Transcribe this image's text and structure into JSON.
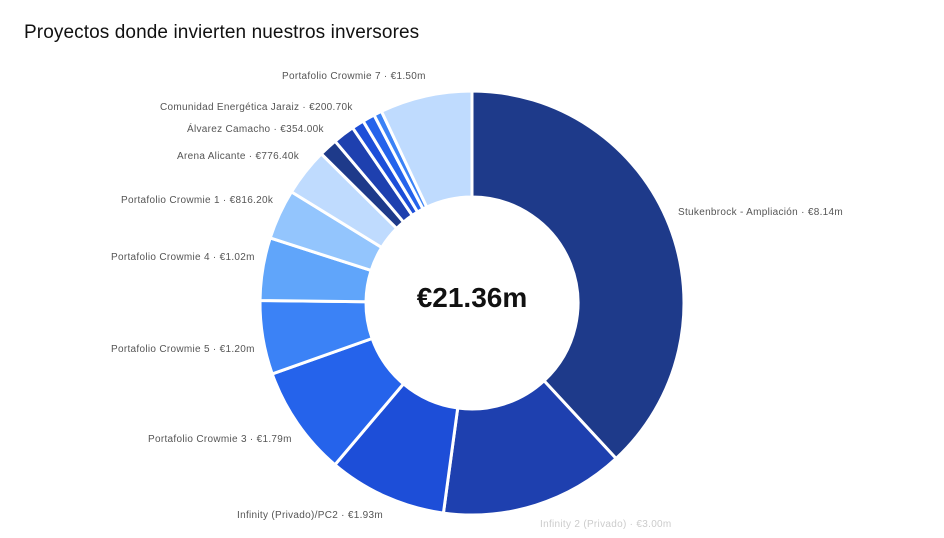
{
  "chart_data": {
    "type": "pie",
    "donut": true,
    "title": "Proyectos donde invierten nuestros inversores",
    "center_label": "€21.36m",
    "unit": "€m",
    "slices": [
      {
        "name": "Stukenbrock - Ampliación",
        "value": 8.14,
        "label": "€8.14m",
        "color": "#1e3a8a"
      },
      {
        "name": "Infinity 2 (Privado)",
        "value": 3.0,
        "label": "€3.00m",
        "color": "#1e40af"
      },
      {
        "name": "Infinity (Privado)/PC2",
        "value": 1.93,
        "label": "€1.93m",
        "color": "#1d4ed8"
      },
      {
        "name": "Portafolio Crowmie 3",
        "value": 1.79,
        "label": "€1.79m",
        "color": "#2563eb"
      },
      {
        "name": "Portafolio Crowmie 5",
        "value": 1.2,
        "label": "€1.20m",
        "color": "#3b82f6"
      },
      {
        "name": "Portafolio Crowmie 4",
        "value": 1.02,
        "label": "€1.02m",
        "color": "#60a5fa"
      },
      {
        "name": "Portafolio Crowmie 1",
        "value": 0.8162,
        "label": "€816.20k",
        "color": "#93c5fd"
      },
      {
        "name": "Arena Alicante",
        "value": 0.7764,
        "label": "€776.40k",
        "color": "#bfdbfe"
      },
      {
        "name": "",
        "value": 0.3,
        "label": "",
        "color": "#1e3a8a"
      },
      {
        "name": "Álvarez Camacho",
        "value": 0.354,
        "label": "€354.00k",
        "color": "#1e40af"
      },
      {
        "name": "Comunidad Energética Jaraiz",
        "value": 0.2007,
        "label": "€200.70k",
        "color": "#1d4ed8"
      },
      {
        "name": "",
        "value": 0.2,
        "label": "",
        "color": "#2563eb"
      },
      {
        "name": "",
        "value": 0.133,
        "label": "",
        "color": "#3b82f6"
      },
      {
        "name": "Portafolio Crowmie 7",
        "value": 1.5,
        "label": "€1.50m",
        "color": "#bfdbfe"
      }
    ]
  }
}
